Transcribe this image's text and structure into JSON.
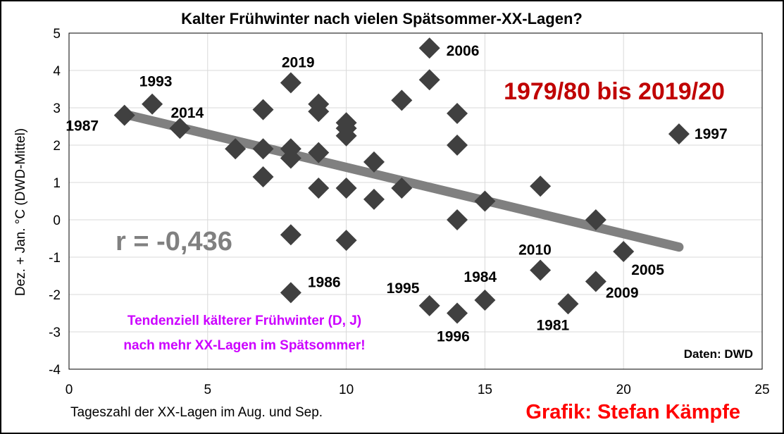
{
  "chart_data": {
    "type": "scatter",
    "title": "Kalter Frühwinter nach vielen Spätsommer-XX-Lagen?",
    "xlabel": "Tageszahl der XX-Lagen im Aug. und Sep.",
    "ylabel": "Dez. + Jan. °C (DWD-Mittel)",
    "xlim": [
      0,
      25
    ],
    "ylim": [
      -4,
      5
    ],
    "x_ticks": [
      "0",
      "5",
      "10",
      "15",
      "20",
      "25"
    ],
    "y_ticks": [
      "5",
      "4",
      "3",
      "2",
      "1",
      "0",
      "-1",
      "-2",
      "-3",
      "-4"
    ],
    "grid": true,
    "marker_color": "#404040",
    "trend_color": "#808080",
    "points": [
      {
        "x": 2,
        "y": 2.8,
        "label": "1987"
      },
      {
        "x": 3,
        "y": 3.1,
        "label": "1993"
      },
      {
        "x": 4,
        "y": 2.45,
        "label": "2014"
      },
      {
        "x": 6,
        "y": 1.9,
        "label": ""
      },
      {
        "x": 7,
        "y": 2.95,
        "label": ""
      },
      {
        "x": 7,
        "y": 1.9,
        "label": ""
      },
      {
        "x": 7,
        "y": 1.15,
        "label": ""
      },
      {
        "x": 8,
        "y": 3.67,
        "label": "2019"
      },
      {
        "x": 8,
        "y": 1.9,
        "label": ""
      },
      {
        "x": 8,
        "y": 1.65,
        "label": ""
      },
      {
        "x": 8,
        "y": -0.4,
        "label": ""
      },
      {
        "x": 8,
        "y": -1.95,
        "label": "1986"
      },
      {
        "x": 9,
        "y": 3.1,
        "label": ""
      },
      {
        "x": 9,
        "y": 2.9,
        "label": ""
      },
      {
        "x": 9,
        "y": 1.8,
        "label": ""
      },
      {
        "x": 9,
        "y": 0.85,
        "label": ""
      },
      {
        "x": 10,
        "y": 2.6,
        "label": ""
      },
      {
        "x": 10,
        "y": 2.45,
        "label": ""
      },
      {
        "x": 10,
        "y": 2.25,
        "label": ""
      },
      {
        "x": 10,
        "y": 0.85,
        "label": ""
      },
      {
        "x": 10,
        "y": -0.55,
        "label": ""
      },
      {
        "x": 11,
        "y": 1.55,
        "label": ""
      },
      {
        "x": 11,
        "y": 0.55,
        "label": ""
      },
      {
        "x": 12,
        "y": 3.2,
        "label": ""
      },
      {
        "x": 12,
        "y": 0.85,
        "label": ""
      },
      {
        "x": 13,
        "y": 4.6,
        "label": "2006"
      },
      {
        "x": 13,
        "y": 3.75,
        "label": ""
      },
      {
        "x": 13,
        "y": -2.3,
        "label": "1995"
      },
      {
        "x": 14,
        "y": 2.85,
        "label": ""
      },
      {
        "x": 14,
        "y": 2.0,
        "label": ""
      },
      {
        "x": 14,
        "y": 0.0,
        "label": ""
      },
      {
        "x": 14,
        "y": -2.5,
        "label": "1996"
      },
      {
        "x": 15,
        "y": 0.5,
        "label": ""
      },
      {
        "x": 15,
        "y": -2.15,
        "label": "1984"
      },
      {
        "x": 17,
        "y": 0.9,
        "label": ""
      },
      {
        "x": 17,
        "y": -1.35,
        "label": "2010"
      },
      {
        "x": 18,
        "y": -2.25,
        "label": "1981"
      },
      {
        "x": 19,
        "y": 0.0,
        "label": ""
      },
      {
        "x": 19,
        "y": -1.65,
        "label": "2009"
      },
      {
        "x": 20,
        "y": -0.85,
        "label": "2005"
      },
      {
        "x": 22,
        "y": 2.3,
        "label": "1997"
      }
    ],
    "trendline": {
      "x": [
        2,
        22
      ],
      "y": [
        2.83,
        -0.73
      ]
    },
    "annotations": {
      "period": {
        "text": "1979/80 bis 2019/20",
        "color": "#c00000"
      },
      "correlation": {
        "text": "r = -0,436",
        "color": "#808080"
      },
      "note_line1": {
        "text": "Tendenziell kälterer Frühwinter (D, J)",
        "color": "#cc00ff"
      },
      "note_line2": {
        "text": "nach mehr XX-Lagen im Spätsommer!",
        "color": "#cc00ff"
      },
      "source": {
        "text": "Daten: DWD"
      },
      "credit": {
        "text": "Grafik: Stefan Kämpfe",
        "color": "#ff0000"
      }
    }
  }
}
